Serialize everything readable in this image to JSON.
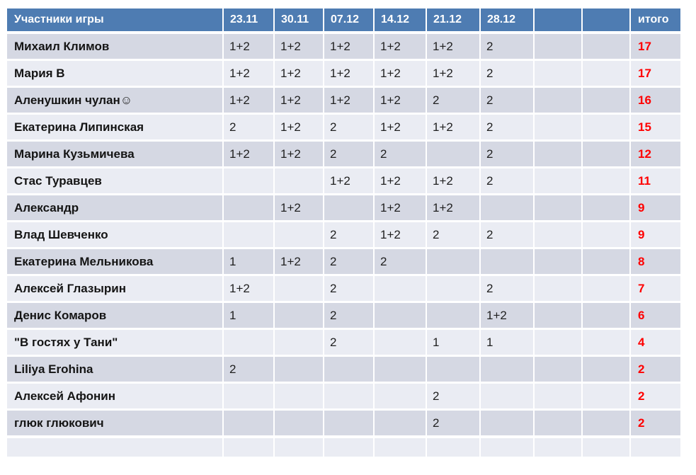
{
  "table": {
    "header": {
      "participants_label": "Участники игры",
      "date_columns": [
        "23.11",
        "30.11",
        "07.12",
        "14.12",
        "21.12",
        "28.12",
        "",
        ""
      ],
      "total_label": "итого"
    },
    "rows": [
      {
        "name": "Михаил Климов",
        "scores": [
          "1+2",
          "1+2",
          "1+2",
          "1+2",
          "1+2",
          "2",
          "",
          ""
        ],
        "total": "17"
      },
      {
        "name": "Мария В",
        "scores": [
          "1+2",
          "1+2",
          "1+2",
          "1+2",
          "1+2",
          "2",
          "",
          ""
        ],
        "total": "17"
      },
      {
        "name": "Аленушкин чулан☺",
        "scores": [
          "1+2",
          "1+2",
          "1+2",
          "1+2",
          "2",
          "2",
          "",
          ""
        ],
        "total": "16"
      },
      {
        "name": "Екатерина Липинская",
        "scores": [
          "2",
          "1+2",
          "2",
          "1+2",
          "1+2",
          "2",
          "",
          ""
        ],
        "total": "15"
      },
      {
        "name": "Марина Кузьмичева",
        "scores": [
          "1+2",
          "1+2",
          "2",
          "2",
          "",
          "2",
          "",
          ""
        ],
        "total": "12"
      },
      {
        "name": "Стас Туравцев",
        "scores": [
          "",
          "",
          "1+2",
          "1+2",
          "1+2",
          "2",
          "",
          ""
        ],
        "total": "11"
      },
      {
        "name": "Александр",
        "scores": [
          "",
          "1+2",
          "",
          "1+2",
          "1+2",
          "",
          "",
          ""
        ],
        "total": "9"
      },
      {
        "name": "Влад Шевченко",
        "scores": [
          "",
          "",
          "2",
          "1+2",
          "2",
          "2",
          "",
          ""
        ],
        "total": "9"
      },
      {
        "name": "Екатерина Мельникова",
        "scores": [
          "1",
          "1+2",
          "2",
          "2",
          "",
          "",
          "",
          ""
        ],
        "total": "8"
      },
      {
        "name": "Алексей Глазырин",
        "scores": [
          "1+2",
          "",
          "2",
          "",
          "",
          "2",
          "",
          ""
        ],
        "total": "7"
      },
      {
        "name": "Денис Комаров",
        "scores": [
          "1",
          "",
          "2",
          "",
          "",
          "1+2",
          "",
          ""
        ],
        "total": "6"
      },
      {
        "name": "\"В гостях у Тани\"",
        "scores": [
          "",
          "",
          "2",
          "",
          "1",
          "1",
          "",
          ""
        ],
        "total": "4"
      },
      {
        "name": "Liliya Erohina",
        "scores": [
          "2",
          "",
          "",
          "",
          "",
          "",
          "",
          ""
        ],
        "total": "2"
      },
      {
        "name": "Алексей Афонин",
        "scores": [
          "",
          "",
          "",
          "",
          "2",
          "",
          "",
          ""
        ],
        "total": "2"
      },
      {
        "name": "глюк глюкович",
        "scores": [
          "",
          "",
          "",
          "",
          "2",
          "",
          "",
          ""
        ],
        "total": "2"
      }
    ],
    "has_partial_bottom_row": true
  },
  "colors": {
    "header_bg": "#4E7CB2",
    "row_dark": "#D5D8E3",
    "row_light": "#EAECF3",
    "total_color": "#FF0000",
    "text_color": "#1F1F1F"
  }
}
